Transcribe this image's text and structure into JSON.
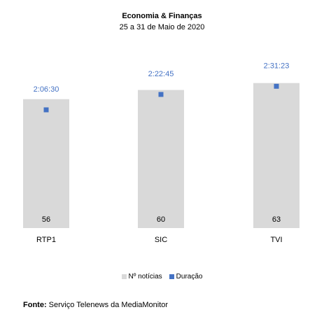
{
  "chart_data": {
    "type": "bar",
    "title": "Economia & Finanças",
    "subtitle": "25 a 31 de Maio de 2020",
    "categories": [
      "RTP1",
      "SIC",
      "TVI"
    ],
    "series": [
      {
        "name": "Nº notícias",
        "type": "bar",
        "values": [
          56,
          60,
          63
        ],
        "value_labels": [
          "56",
          "60",
          "63"
        ],
        "color": "#d9d9d9"
      },
      {
        "name": "Duração",
        "type": "scatter",
        "values_seconds": [
          7590,
          8565,
          9083
        ],
        "value_labels": [
          "2:06:30",
          "2:22:45",
          "2:31:23"
        ],
        "color": "#4472c4"
      }
    ],
    "label_color": "#4472c4",
    "legend_position": "bottom",
    "grid": false
  },
  "source": {
    "label": "Fonte:",
    "text": "Serviço Telenews da MediaMonitor"
  }
}
